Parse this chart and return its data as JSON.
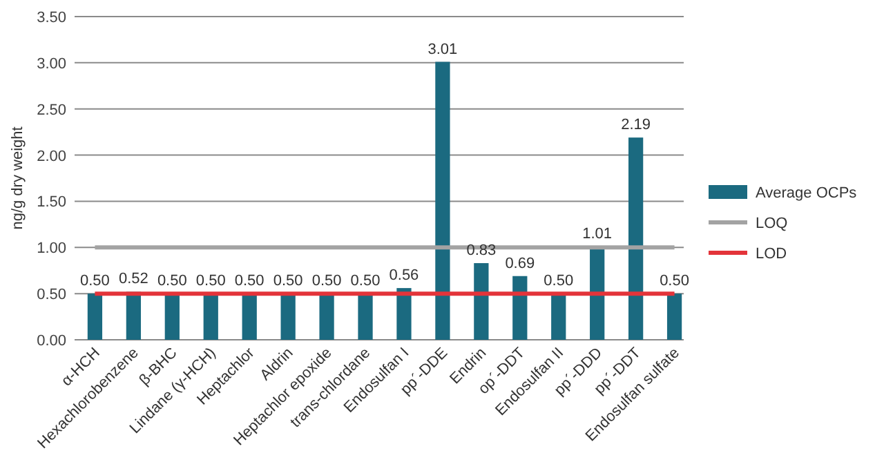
{
  "chart_data": {
    "type": "bar",
    "ylabel": "ng/g dry weight",
    "categories": [
      "α-HCH",
      "Hexachlorobenzene",
      "β-BHC",
      "Lindane (γ-HCH)",
      "Heptachlor",
      "Aldrin",
      "Heptachlor epoxide",
      "trans-chlordane",
      "Endosulfan I",
      "pp´-DDE",
      "Endrin",
      "op´-DDT",
      "Endosulfan II",
      "pp´-DDD",
      "pp´-DDT",
      "Endosulfan sulfate"
    ],
    "series": [
      {
        "name": "Average OCPs",
        "color": "#1b6a80",
        "values": [
          0.5,
          0.52,
          0.5,
          0.5,
          0.5,
          0.5,
          0.5,
          0.5,
          0.56,
          3.01,
          0.83,
          0.69,
          0.5,
          1.01,
          2.19,
          0.5
        ],
        "value_labels": [
          "0.50",
          "0.52",
          "0.50",
          "0.50",
          "0.50",
          "0.50",
          "0.50",
          "0.50",
          "0.56",
          "3.01",
          "0.83",
          "0.69",
          "0.50",
          "1.01",
          "2.19",
          "0.50"
        ]
      },
      {
        "name": "LOQ",
        "type": "line",
        "color": "#a3a3a3",
        "values": [
          1,
          1,
          1,
          1,
          1,
          1,
          1,
          1,
          1,
          1,
          1,
          1,
          1,
          1,
          1,
          1
        ]
      },
      {
        "name": "LOD",
        "type": "line",
        "color": "#e3343a",
        "values": [
          0.5,
          0.5,
          0.5,
          0.5,
          0.5,
          0.5,
          0.5,
          0.5,
          0.5,
          0.5,
          0.5,
          0.5,
          0.5,
          0.5,
          0.5,
          0.5
        ]
      }
    ],
    "ylim": [
      0,
      3.5
    ],
    "yticks": [
      {
        "value": 0,
        "label": "0.00"
      },
      {
        "value": 0.5,
        "label": "0.50"
      },
      {
        "value": 1,
        "label": "1.00"
      },
      {
        "value": 1.5,
        "label": "1.50"
      },
      {
        "value": 2,
        "label": "2.00"
      },
      {
        "value": 2.5,
        "label": "2.50"
      },
      {
        "value": 3,
        "label": "3.00"
      },
      {
        "value": 3.5,
        "label": "3.50"
      }
    ],
    "grid": "y",
    "legend": "right"
  }
}
